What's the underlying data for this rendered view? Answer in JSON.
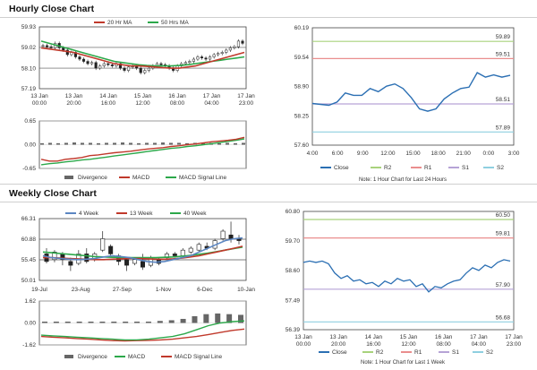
{
  "sections": [
    {
      "title": "Hourly Close Chart"
    },
    {
      "title": "Weekly Close Chart"
    }
  ],
  "colors": {
    "green": "#2ca84a",
    "red": "#c0392b",
    "blue": "#5b86c2",
    "candle": "#222222",
    "bar": "#666666",
    "r2": "#a8d27c",
    "r1": "#ea8e8e",
    "s1": "#b6a3d6",
    "s2": "#8fcfe0",
    "close": "#2b6fb3",
    "grid": "#cccccc"
  },
  "chart_data": [
    {
      "type": "candlestick",
      "legend": [
        "20 Hr MA",
        "50 Hrs MA"
      ],
      "yticks": [
        "59.93",
        "59.02",
        "58.10",
        "57.19"
      ],
      "ylim": [
        57.19,
        59.93
      ],
      "xticks": [
        {
          "d": "13 Jan",
          "t": "00:00"
        },
        {
          "d": "13 Jan",
          "t": "20:00"
        },
        {
          "d": "14 Jan",
          "t": "16:00"
        },
        {
          "d": "15 Jan",
          "t": "12:00"
        },
        {
          "d": "16 Jan",
          "t": "08:00"
        },
        {
          "d": "17 Jan",
          "t": "04:00"
        },
        {
          "d": "17 Jan",
          "t": "23:00"
        }
      ],
      "closes": [
        59.1,
        59.05,
        59.0,
        59.2,
        59.0,
        58.9,
        58.7,
        58.8,
        58.6,
        58.5,
        58.4,
        58.3,
        58.35,
        58.1,
        58.2,
        58.3,
        58.25,
        58.2,
        58.3,
        58.1,
        58.0,
        58.15,
        58.2,
        58.1,
        57.9,
        58.0,
        58.1,
        58.2,
        58.3,
        58.25,
        58.2,
        58.1,
        58.0,
        58.2,
        58.3,
        58.35,
        58.4,
        58.5,
        58.6,
        58.55,
        58.5,
        58.6,
        58.7,
        58.75,
        58.8,
        58.9,
        59.0,
        59.05,
        59.3,
        59.2
      ],
      "ma20": [
        59.0,
        58.95,
        58.9,
        58.85,
        58.8,
        58.7,
        58.6,
        58.5,
        58.4,
        58.3,
        58.25,
        58.2,
        58.2,
        58.18,
        58.15,
        58.12,
        58.1,
        58.1,
        58.15,
        58.2,
        58.3,
        58.4,
        58.5,
        58.6,
        58.7,
        58.8
      ],
      "ma50": [
        59.3,
        59.2,
        59.1,
        59.0,
        58.9,
        58.8,
        58.7,
        58.6,
        58.5,
        58.4,
        58.35,
        58.3,
        58.25,
        58.22,
        58.2,
        58.2,
        58.2,
        58.22,
        58.25,
        58.3,
        58.35,
        58.4,
        58.45,
        58.5,
        58.55,
        58.6
      ]
    },
    {
      "type": "macd",
      "yticks": [
        "0.65",
        "0.00",
        "-0.65"
      ],
      "ylim": [
        -0.65,
        0.65
      ],
      "legend": [
        "Divergence",
        "MACD",
        "MACD Signal Line"
      ],
      "macd": [
        -0.4,
        -0.45,
        -0.45,
        -0.4,
        -0.38,
        -0.35,
        -0.3,
        -0.28,
        -0.25,
        -0.22,
        -0.2,
        -0.18,
        -0.15,
        -0.12,
        -0.1,
        -0.08,
        -0.05,
        -0.03,
        0.0,
        0.02,
        0.05,
        0.08,
        0.1,
        0.12,
        0.15,
        0.2
      ],
      "signal": [
        -0.55,
        -0.52,
        -0.5,
        -0.47,
        -0.45,
        -0.42,
        -0.4,
        -0.37,
        -0.34,
        -0.31,
        -0.28,
        -0.25,
        -0.22,
        -0.19,
        -0.16,
        -0.13,
        -0.1,
        -0.08,
        -0.05,
        -0.03,
        0.0,
        0.03,
        0.06,
        0.09,
        0.12,
        0.16
      ],
      "divergence": [
        0.04,
        0.05,
        0.04,
        0.05,
        0.06,
        0.05,
        0.05,
        0.04,
        0.05,
        0.05,
        0.06,
        0.05,
        0.04,
        0.05,
        0.05,
        0.06,
        0.05,
        0.05,
        0.04,
        0.05,
        0.05,
        0.05,
        0.04,
        0.05,
        0.04,
        0.05
      ]
    },
    {
      "type": "line",
      "yticks": [
        "60.19",
        "59.54",
        "58.90",
        "58.25",
        "57.60"
      ],
      "ylim": [
        57.6,
        60.19
      ],
      "xticks": [
        "4:00",
        "6:00",
        "9:00",
        "12:00",
        "15:00",
        "18:00",
        "21:00",
        "0:00",
        "3:00"
      ],
      "levels": [
        {
          "name": "R2",
          "value": 59.89,
          "label": "59.89"
        },
        {
          "name": "R1",
          "value": 59.51,
          "label": "59.51"
        },
        {
          "name": "S1",
          "value": 58.51,
          "label": "58.51"
        },
        {
          "name": "S2",
          "value": 57.89,
          "label": "57.89"
        }
      ],
      "close": [
        58.52,
        58.5,
        58.48,
        58.55,
        58.75,
        58.7,
        58.7,
        58.85,
        58.78,
        58.9,
        58.95,
        58.85,
        58.65,
        58.4,
        58.35,
        58.4,
        58.62,
        58.75,
        58.85,
        58.88,
        59.2,
        59.1,
        59.15,
        59.1,
        59.14
      ],
      "legend": [
        "Close",
        "R2",
        "R1",
        "S1",
        "S2"
      ],
      "note": "Note: 1 Hour Chart for Last 24 Hours"
    },
    {
      "type": "candlestick",
      "legend": [
        "4 Week",
        "13 Week",
        "40 Week"
      ],
      "yticks": [
        "66.31",
        "60.88",
        "55.45",
        "50.01"
      ],
      "ylim": [
        50.01,
        66.31
      ],
      "xticks": [
        "19-Jul",
        "23-Aug",
        "27-Sep",
        "1-Nov",
        "6-Dec",
        "10-Jan"
      ],
      "candles": [
        [
          57.0,
          55.0,
          58.5,
          54.5
        ],
        [
          55.5,
          57.5,
          58.0,
          54.8
        ],
        [
          57.0,
          55.5,
          57.5,
          54.0
        ],
        [
          55.0,
          54.0,
          56.0,
          52.5
        ],
        [
          54.5,
          57.0,
          58.0,
          54.0
        ],
        [
          57.0,
          55.0,
          58.5,
          54.5
        ],
        [
          55.5,
          57.0,
          57.5,
          55.0
        ],
        [
          58.0,
          61.0,
          63.0,
          57.5
        ],
        [
          59.0,
          57.0,
          59.5,
          56.5
        ],
        [
          56.5,
          55.0,
          57.0,
          54.0
        ],
        [
          55.5,
          54.0,
          56.0,
          52.5
        ],
        [
          54.5,
          55.5,
          56.0,
          54.0
        ],
        [
          55.0,
          53.5,
          57.0,
          52.8
        ],
        [
          54.0,
          56.0,
          56.5,
          53.5
        ],
        [
          55.5,
          54.5,
          56.0,
          54.0
        ],
        [
          56.0,
          57.0,
          57.5,
          55.5
        ],
        [
          57.0,
          56.5,
          57.5,
          56.0
        ],
        [
          56.5,
          58.0,
          58.5,
          56.0
        ],
        [
          57.5,
          58.5,
          59.0,
          57.0
        ],
        [
          58.0,
          59.5,
          60.0,
          57.5
        ],
        [
          59.0,
          58.5,
          60.0,
          58.0
        ],
        [
          58.5,
          60.5,
          61.0,
          58.0
        ],
        [
          61.0,
          63.0,
          63.5,
          60.5
        ],
        [
          62.0,
          61.0,
          65.5,
          60.0
        ],
        [
          61.0,
          60.5,
          62.0,
          59.5
        ]
      ],
      "wk4": [
        56.5,
        56.0,
        55.8,
        55.6,
        55.5,
        55.6,
        55.8,
        56.2,
        56.5,
        56.3,
        56.0,
        55.5,
        55.0,
        54.8,
        55.0,
        55.5,
        56.0,
        56.5,
        57.5,
        58.5,
        59.5,
        60.5,
        61.0,
        61.2
      ],
      "wk13": [
        56.0,
        56.0,
        55.9,
        55.8,
        55.7,
        55.6,
        55.5,
        55.5,
        55.6,
        55.7,
        55.8,
        55.8,
        55.7,
        55.6,
        55.6,
        55.7,
        55.9,
        56.2,
        56.5,
        57.0,
        57.5,
        58.0,
        58.5,
        59.0
      ],
      "wk40": [
        57.5,
        57.3,
        57.1,
        56.9,
        56.7,
        56.5,
        56.3,
        56.2,
        56.1,
        56.0,
        56.0,
        56.0,
        56.0,
        56.0,
        56.1,
        56.2,
        56.4,
        56.6,
        56.9,
        57.2,
        57.6,
        58.0,
        58.4,
        58.8
      ]
    },
    {
      "type": "macd",
      "yticks": [
        "1.62",
        "0.00",
        "-1.62"
      ],
      "ylim": [
        -1.62,
        1.62
      ],
      "legend": [
        "Divergence",
        "MACD",
        "MACD Signal Line"
      ],
      "macd": [
        -0.9,
        -0.95,
        -1.0,
        -1.05,
        -1.1,
        -1.15,
        -1.2,
        -1.25,
        -1.25,
        -1.2,
        -1.1,
        -1.0,
        -0.8,
        -0.5,
        -0.2,
        0.0,
        0.1,
        0.15
      ],
      "signal": [
        -1.0,
        -1.05,
        -1.1,
        -1.15,
        -1.2,
        -1.25,
        -1.3,
        -1.32,
        -1.3,
        -1.28,
        -1.25,
        -1.2,
        -1.1,
        -1.0,
        -0.85,
        -0.7,
        -0.55,
        -0.45
      ],
      "divergence": [
        0.1,
        0.1,
        0.1,
        0.1,
        0.1,
        0.1,
        0.1,
        0.1,
        0.1,
        0.1,
        0.15,
        0.2,
        0.3,
        0.5,
        0.65,
        0.7,
        0.65,
        0.6
      ]
    },
    {
      "type": "line",
      "yticks": [
        "60.80",
        "59.70",
        "58.60",
        "57.49",
        "56.39"
      ],
      "ylim": [
        56.39,
        60.8
      ],
      "xticks": [
        {
          "d": "13 Jan",
          "t": "00:00"
        },
        {
          "d": "13 Jan",
          "t": "20:00"
        },
        {
          "d": "14 Jan",
          "t": "16:00"
        },
        {
          "d": "15 Jan",
          "t": "12:00"
        },
        {
          "d": "16 Jan",
          "t": "08:00"
        },
        {
          "d": "17 Jan",
          "t": "04:00"
        },
        {
          "d": "17 Jan",
          "t": "23:00"
        }
      ],
      "levels": [
        {
          "name": "R2",
          "value": 60.5,
          "label": "60.50"
        },
        {
          "name": "R1",
          "value": 59.81,
          "label": "59.81"
        },
        {
          "name": "S1",
          "value": 57.9,
          "label": "57.90"
        },
        {
          "name": "S2",
          "value": 56.68,
          "label": "56.68"
        }
      ],
      "close": [
        58.9,
        58.95,
        58.9,
        58.95,
        58.85,
        58.5,
        58.3,
        58.4,
        58.2,
        58.25,
        58.1,
        58.15,
        58.0,
        58.2,
        58.1,
        58.3,
        58.2,
        58.25,
        58.0,
        58.1,
        57.8,
        58.0,
        57.95,
        58.1,
        58.2,
        58.25,
        58.5,
        58.7,
        58.6,
        58.8,
        58.7,
        58.9,
        59.0,
        58.95
      ],
      "legend": [
        "Close",
        "R2",
        "R1",
        "S1",
        "S2"
      ],
      "note": "Note: 1 Hour Chart for Last 1 Week"
    }
  ]
}
